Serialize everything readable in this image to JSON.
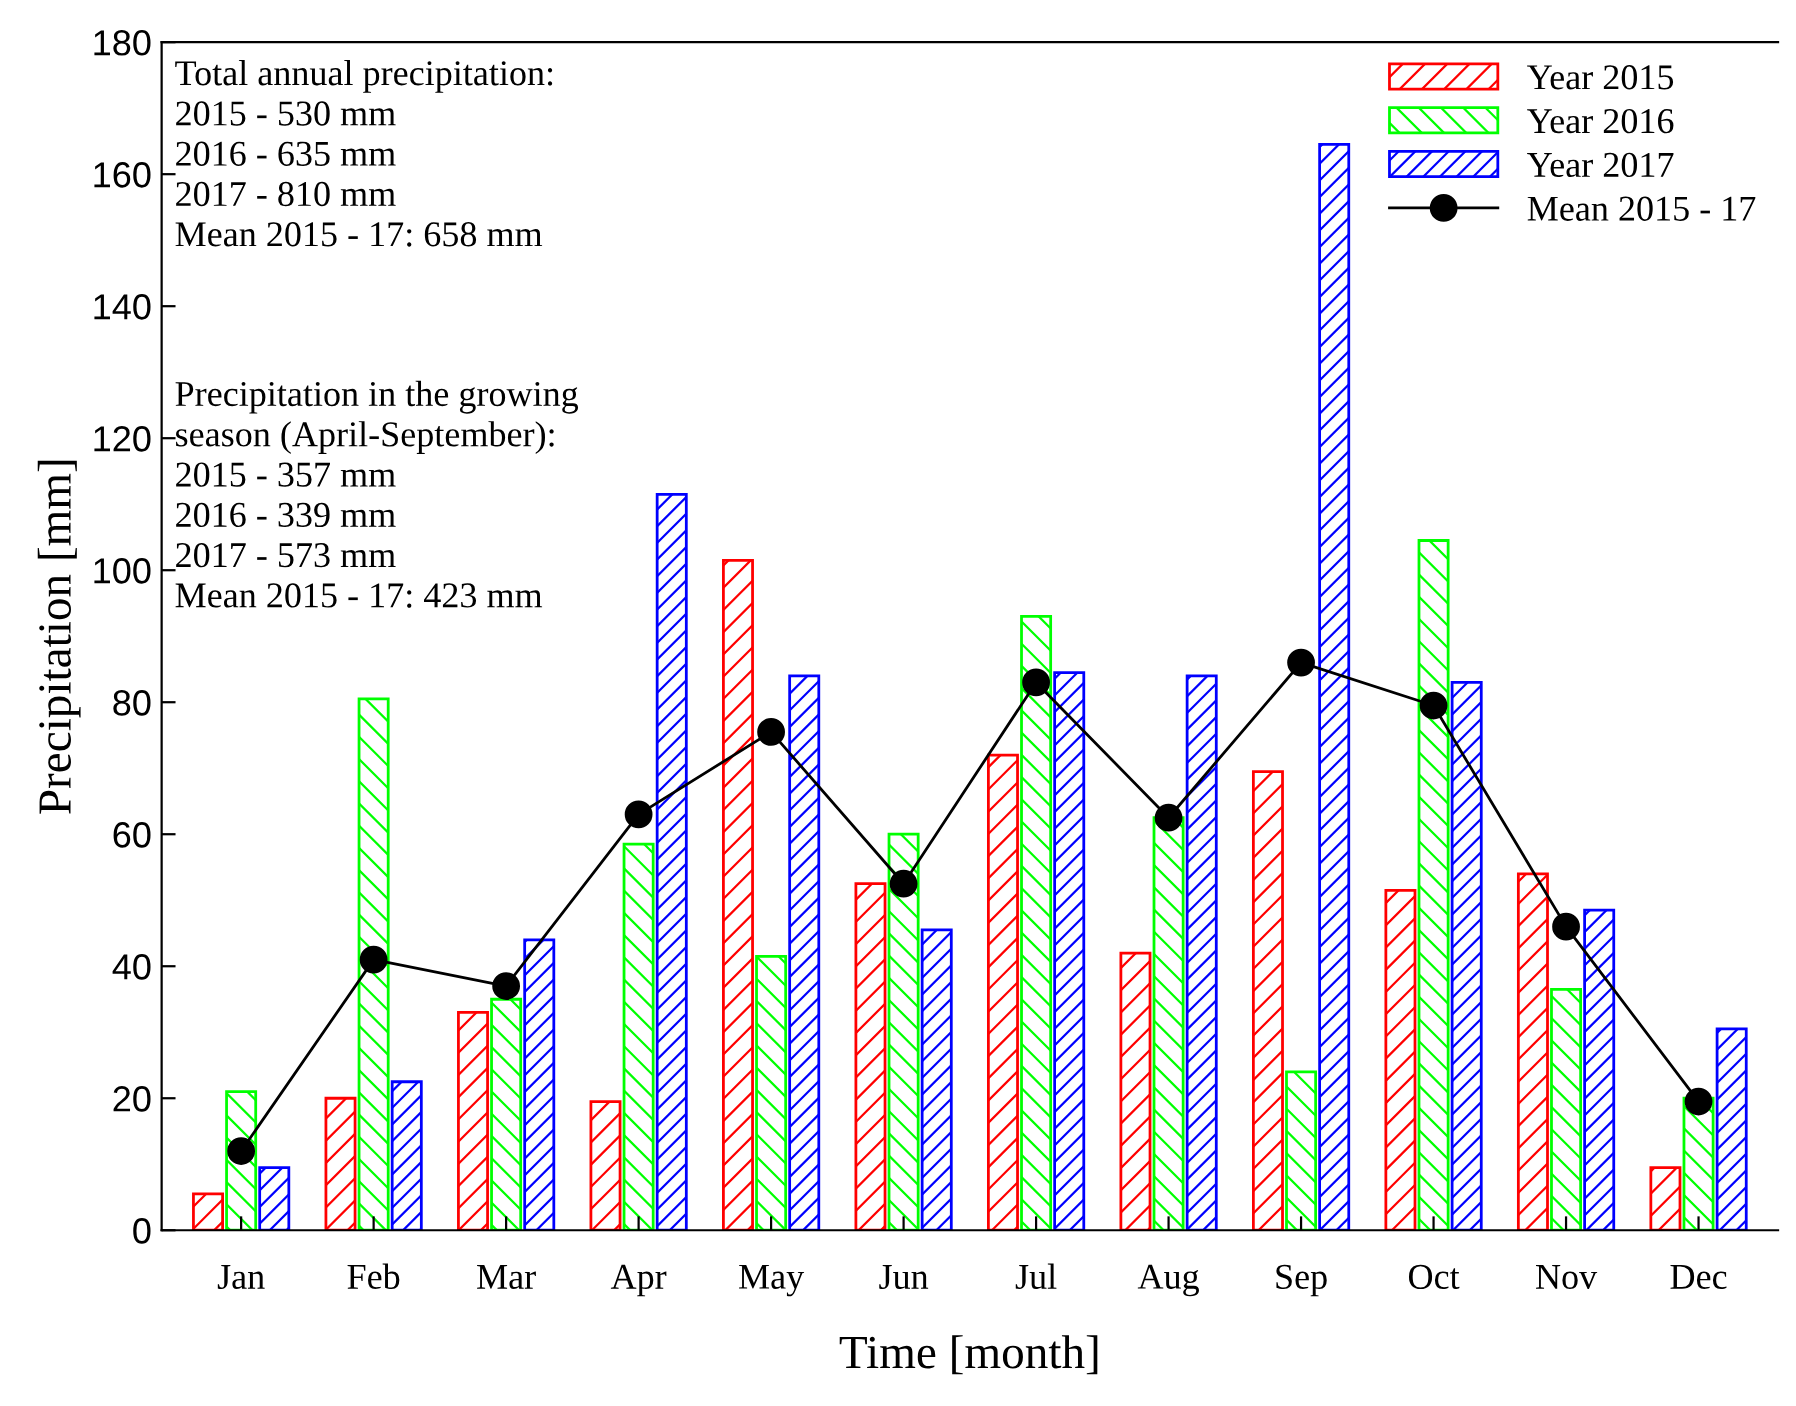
{
  "chart_data": {
    "type": "bar",
    "xlabel": "Time [month]",
    "ylabel": "Precipitation [mm]",
    "categories": [
      "Jan",
      "Feb",
      "Mar",
      "Apr",
      "May",
      "Jun",
      "Jul",
      "Aug",
      "Sep",
      "Oct",
      "Nov",
      "Dec"
    ],
    "series": [
      {
        "name": "Year 2015",
        "color": "#ff0000",
        "values": [
          5.5,
          20,
          33,
          19.5,
          101.5,
          52.5,
          72,
          42,
          69.5,
          51.5,
          54,
          9.5
        ]
      },
      {
        "name": "Year 2016",
        "color": "#00ff00",
        "values": [
          21,
          80.5,
          35,
          58.5,
          41.5,
          60,
          93,
          62.5,
          24,
          104.5,
          36.5,
          20
        ]
      },
      {
        "name": "Year 2017",
        "color": "#0000ff",
        "values": [
          9.5,
          22.5,
          44,
          111.5,
          84,
          45.5,
          84.5,
          84,
          164.5,
          83,
          48.5,
          30.5
        ]
      },
      {
        "name": "Mean 2015 - 17",
        "type": "line",
        "color": "#000000",
        "marker": "circle",
        "line_style": "solid",
        "values": [
          12,
          41,
          37,
          63,
          75.5,
          52.5,
          83,
          62.5,
          86,
          79.5,
          46,
          19.5
        ]
      }
    ],
    "ylim": [
      0,
      180
    ],
    "yticks": [
      0,
      20,
      40,
      60,
      80,
      100,
      120,
      140,
      160,
      180
    ],
    "grid": false,
    "legend": "top right",
    "annotations": [
      "Total annual precipitation:\n2015 - 530 mm\n2016 - 635 mm\n2017 - 810 mm\nMean 2015 - 17: 658 mm",
      "Precipitation in the growing\nseason (April-September):\n2015 - 357 mm\n2016 - 339 mm\n2017 - 573 mm\nMean 2015 - 17: 423 mm"
    ]
  }
}
